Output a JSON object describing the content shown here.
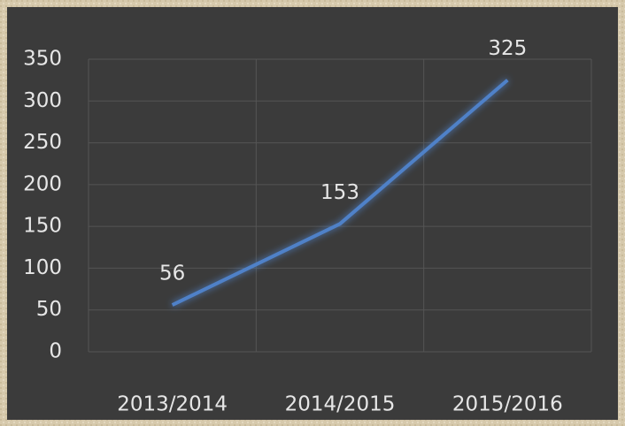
{
  "chart_data": {
    "type": "line",
    "categories": [
      "2013/2014",
      "2014/2015",
      "2015/2016"
    ],
    "series": [
      {
        "color": "#4f81c8",
        "values": [
          56,
          153,
          325
        ]
      }
    ],
    "ylim": [
      0,
      350
    ],
    "yticks": [
      0,
      50,
      100,
      150,
      200,
      250,
      300,
      350
    ],
    "grid": true,
    "data_labels": true
  }
}
